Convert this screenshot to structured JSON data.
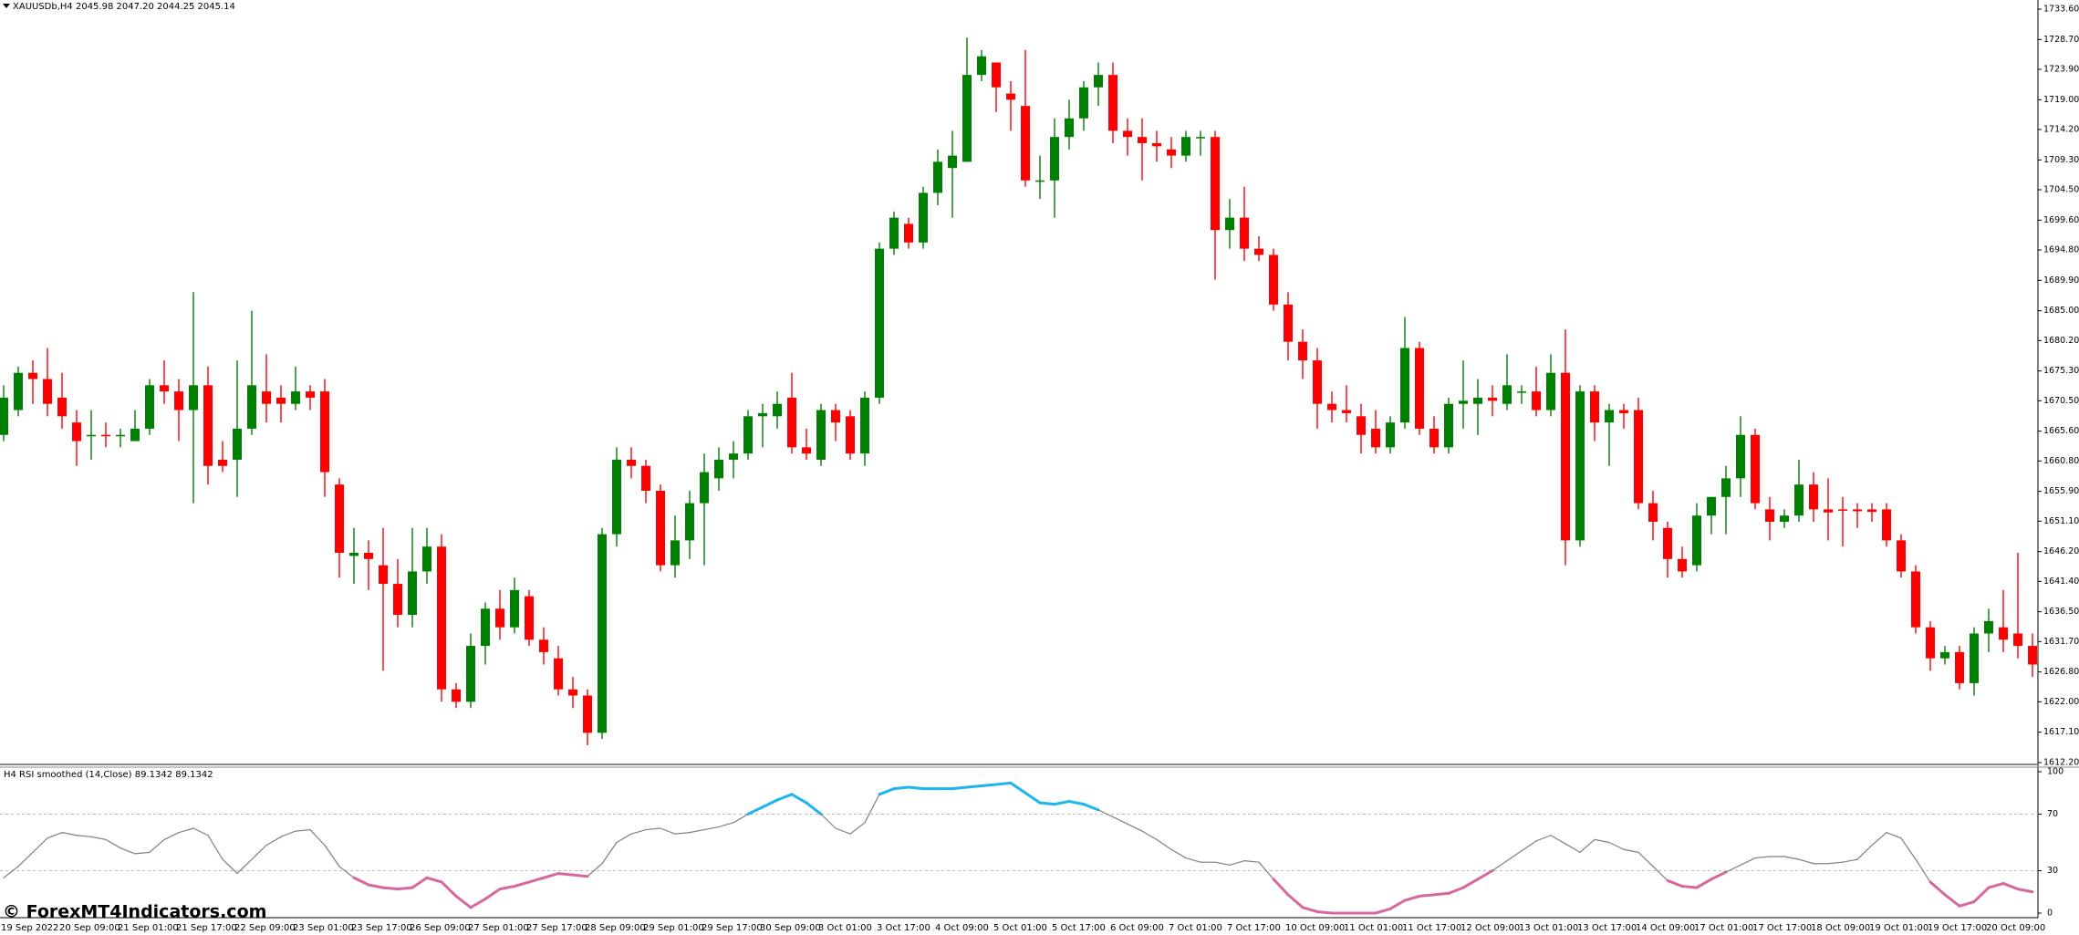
{
  "chart_data": [
    {
      "type": "candlestick",
      "title": "XAUUSDb,H4 2045.98 2047.20 2044.25 2045.14",
      "categories": [
        "19 Sep 2022",
        null,
        null,
        null,
        "20 Sep 09:00",
        null,
        null,
        null,
        "21 Sep 01:00",
        null,
        null,
        null,
        "21 Sep 17:00",
        null,
        null,
        null,
        "22 Sep 09:00",
        null,
        null,
        null,
        "23 Sep 01:00",
        null,
        null,
        null,
        "23 Sep 17:00",
        null,
        null,
        null,
        "26 Sep 09:00",
        null,
        null,
        null,
        "27 Sep 01:00",
        null,
        null,
        null,
        "27 Sep 17:00",
        null,
        null,
        null,
        "28 Sep 09:00",
        null,
        null,
        null,
        "29 Sep 01:00",
        null,
        null,
        null,
        "29 Sep 17:00",
        null,
        null,
        null,
        "30 Sep 09:00",
        null,
        null,
        null,
        "3 Oct 01:00",
        null,
        null,
        null,
        "3 Oct 17:00",
        null,
        null,
        null,
        "4 Oct 09:00",
        null,
        null,
        null,
        "5 Oct 01:00",
        null,
        null,
        null,
        "5 Oct 17:00",
        null,
        null,
        null,
        "6 Oct 09:00",
        null,
        null,
        null,
        "7 Oct 01:00",
        null,
        null,
        null,
        "7 Oct 17:00",
        null,
        null,
        null,
        "10 Oct 09:00",
        null,
        null,
        null,
        "11 Oct 01:00",
        null,
        null,
        null,
        "11 Oct 17:00",
        null,
        null,
        null,
        "12 Oct 09:00",
        null,
        null,
        null,
        "13 Oct 01:00",
        null,
        null,
        null,
        "13 Oct 17:00",
        null,
        null,
        null,
        "14 Oct 09:00",
        null,
        null,
        null,
        "17 Oct 01:00",
        null,
        null,
        null,
        "17 Oct 17:00",
        null,
        null,
        null,
        "18 Oct 09:00",
        null,
        null,
        null,
        "19 Oct 01:00",
        null,
        null,
        null,
        "19 Oct 17:00",
        null,
        null,
        null,
        "20 Oct 09:00",
        null,
        null,
        null
      ],
      "open": [
        1665,
        1669,
        1675,
        1674,
        1671,
        1667,
        1665,
        1665,
        1664.9,
        1664,
        1666,
        1673,
        1672,
        1669,
        1673,
        1661,
        1661,
        1666,
        1672,
        1671,
        1670,
        1672,
        1672,
        1657,
        1645.5,
        1646,
        1644,
        1641,
        1636,
        1643,
        1647,
        1624,
        1622,
        1631,
        1637,
        1634,
        1639,
        1632,
        1629,
        1624,
        1623,
        1617,
        1649,
        1661,
        1660,
        1656,
        1644,
        1648,
        1654,
        1658,
        1661,
        1662,
        1668,
        1668,
        1671,
        1663,
        1661,
        1669,
        1668,
        1662,
        1671,
        1695,
        1699,
        1696,
        1704,
        1708,
        1709,
        1723,
        1725,
        1720,
        1718,
        1706,
        1706,
        1713,
        1716,
        1721,
        1723,
        1714,
        1713,
        1712,
        1711,
        1710,
        1713,
        1713,
        1698,
        1700,
        1695,
        1694,
        1686,
        1680,
        1677,
        1670,
        1669,
        1668,
        1666,
        1663,
        1667,
        1679,
        1666,
        1663,
        1670,
        1670,
        1671,
        1670,
        1672,
        1672,
        1669,
        1675,
        1648,
        1672,
        1667,
        1669,
        1669,
        1654,
        1650,
        1645,
        1644,
        1652,
        1655,
        1658,
        1665,
        1653,
        1651,
        1652,
        1657,
        1653,
        1653,
        1653,
        1653,
        1653,
        1648,
        1643,
        1634,
        1629,
        1630,
        1625,
        1633,
        1634,
        1633,
        1631
      ],
      "high": [
        1673,
        1676,
        1677,
        1679,
        1675,
        1669,
        1669,
        1667,
        1666,
        1669,
        1674,
        1677,
        1674,
        1688,
        1676,
        1664,
        1677,
        1685,
        1678,
        1673,
        1676,
        1673,
        1674,
        1658,
        1650,
        1648,
        1650,
        1645,
        1650,
        1650,
        1649,
        1625,
        1633,
        1638,
        1640,
        1642,
        1640,
        1634,
        1631,
        1626,
        1624,
        1650,
        1663,
        1663,
        1661,
        1657,
        1652,
        1656,
        1662,
        1663,
        1664,
        1669,
        1670,
        1672,
        1675,
        1666,
        1670,
        1670,
        1669,
        1672,
        1696,
        1701,
        1700,
        1705,
        1711,
        1714,
        1729,
        1727,
        1725,
        1722,
        1727,
        1710,
        1716,
        1719,
        1722,
        1725,
        1725,
        1716,
        1716,
        1714,
        1713,
        1714,
        1714,
        1714,
        1703,
        1705,
        1697,
        1695,
        1688,
        1682,
        1679,
        1672,
        1673,
        1670,
        1669,
        1668,
        1684,
        1680,
        1668,
        1671,
        1677,
        1674,
        1673,
        1678,
        1673,
        1676,
        1678,
        1682,
        1673,
        1673,
        1670,
        1670,
        1671,
        1656,
        1651,
        1647,
        1654,
        1655,
        1660,
        1668,
        1666,
        1655,
        1653,
        1661,
        1659,
        1658,
        1655,
        1654,
        1654,
        1654,
        1649,
        1644,
        1635,
        1631,
        1631,
        1634,
        1637,
        1640,
        1646,
        1633
      ],
      "low": [
        1664,
        1668,
        1670,
        1668,
        1666,
        1660,
        1661,
        1663,
        1663,
        1664,
        1665,
        1670,
        1664,
        1654,
        1657,
        1659,
        1655,
        1665,
        1667,
        1667,
        1669,
        1669,
        1655,
        1642,
        1641,
        1640,
        1627,
        1634,
        1634,
        1641,
        1622,
        1621,
        1621,
        1628,
        1632,
        1633,
        1631,
        1628,
        1623,
        1621,
        1615,
        1616,
        1647,
        1658,
        1654,
        1643,
        1642,
        1645,
        1644,
        1656,
        1658,
        1661,
        1663,
        1666,
        1662,
        1661,
        1660,
        1664,
        1661,
        1660,
        1670,
        1694,
        1695,
        1695,
        1702,
        1700,
        1709,
        1722,
        1717,
        1714,
        1705,
        1703,
        1700,
        1711,
        1714,
        1718,
        1712,
        1710,
        1706,
        1709,
        1708,
        1709,
        1710,
        1690,
        1695,
        1693,
        1693,
        1685,
        1677,
        1674,
        1666,
        1667,
        1667,
        1662,
        1662,
        1662,
        1666,
        1665,
        1662,
        1662,
        1666,
        1665,
        1668,
        1669,
        1670,
        1668,
        1668,
        1644,
        1647,
        1664,
        1660,
        1666,
        1653,
        1648,
        1642,
        1642,
        1643,
        1649,
        1649,
        1655,
        1653,
        1648,
        1650,
        1651,
        1651,
        1648,
        1647,
        1650,
        1651,
        1647,
        1642,
        1633,
        1627,
        1628,
        1624,
        1623,
        1630,
        1630,
        1629,
        1626
      ],
      "close": [
        1671,
        1675,
        1674,
        1670,
        1668,
        1664,
        1665,
        1664.8,
        1665,
        1666,
        1673,
        1672,
        1669,
        1673,
        1660,
        1660,
        1666,
        1673,
        1670,
        1670,
        1672,
        1671,
        1659,
        1646,
        1646,
        1645,
        1641,
        1636,
        1643,
        1647,
        1624,
        1622,
        1631,
        1637,
        1634,
        1640,
        1632,
        1630,
        1624,
        1623,
        1617,
        1649,
        1661,
        1660,
        1656,
        1644,
        1648,
        1654,
        1659,
        1661,
        1662,
        1668,
        1668.5,
        1670,
        1663,
        1662,
        1669,
        1667,
        1662,
        1671,
        1695,
        1700,
        1696,
        1704,
        1709,
        1710,
        1723,
        1726,
        1721,
        1719,
        1706,
        1706,
        1713,
        1716,
        1721,
        1723,
        1714,
        1713,
        1712,
        1711.5,
        1710,
        1713,
        1713,
        1698,
        1700,
        1695,
        1694,
        1686,
        1680,
        1677,
        1670,
        1669,
        1668.5,
        1665,
        1663,
        1667,
        1679,
        1666,
        1663,
        1670,
        1670.5,
        1671,
        1670.5,
        1673,
        1672,
        1669,
        1675,
        1648,
        1672,
        1667,
        1669,
        1668.5,
        1654,
        1651,
        1645,
        1643,
        1652,
        1655,
        1658,
        1665,
        1654,
        1651,
        1652,
        1657,
        1653,
        1652.5,
        1652.8,
        1652.7,
        1652.6,
        1648,
        1643,
        1634,
        1629,
        1630,
        1625,
        1633,
        1635,
        1632,
        1631,
        1628
      ],
      "up_color": "#008000",
      "down_color": "#ff0000",
      "ylim": [
        1612.2,
        1733.6
      ],
      "yticks": [
        {
          "value": 1612.2,
          "label": "1612.20"
        },
        {
          "value": 1617.1,
          "label": "1617.10"
        },
        {
          "value": 1622,
          "label": "1622.00"
        },
        {
          "value": 1626.8,
          "label": "1626.80"
        },
        {
          "value": 1631.7,
          "label": "1631.70"
        },
        {
          "value": 1636.5,
          "label": "1636.50"
        },
        {
          "value": 1641.4,
          "label": "1641.40"
        },
        {
          "value": 1646.2,
          "label": "1646.20"
        },
        {
          "value": 1651.1,
          "label": "1651.10"
        },
        {
          "value": 1655.9,
          "label": "1655.90"
        },
        {
          "value": 1660.8,
          "label": "1660.80"
        },
        {
          "value": 1665.6,
          "label": "1665.60"
        },
        {
          "value": 1670.5,
          "label": "1670.50"
        },
        {
          "value": 1675.3,
          "label": "1675.30"
        },
        {
          "value": 1680.2,
          "label": "1680.20"
        },
        {
          "value": 1685,
          "label": "1685.00"
        },
        {
          "value": 1689.9,
          "label": "1689.90"
        },
        {
          "value": 1694.8,
          "label": "1694.80"
        },
        {
          "value": 1699.6,
          "label": "1699.60"
        },
        {
          "value": 1704.5,
          "label": "1704.50"
        },
        {
          "value": 1709.3,
          "label": "1709.30"
        },
        {
          "value": 1714.2,
          "label": "1714.20"
        },
        {
          "value": 1719,
          "label": "1719.00"
        },
        {
          "value": 1723.9,
          "label": "1723.90"
        },
        {
          "value": 1728.7,
          "label": "1728.70"
        },
        {
          "value": 1733.6,
          "label": "1733.60"
        }
      ]
    },
    {
      "type": "line",
      "title": "H4 RSI smoothed (14,Close) 89.1342 89.1342",
      "annotation": "© ForexMT4Indicators.com",
      "values": [
        25,
        33,
        43,
        53,
        57,
        55,
        54,
        52,
        46,
        42,
        43,
        52,
        57,
        60,
        55,
        38,
        28,
        38,
        48,
        54,
        58,
        59,
        48,
        33,
        25,
        20,
        18,
        17,
        18,
        25,
        22,
        12,
        4,
        10,
        17,
        19,
        22,
        25,
        28,
        27,
        26,
        35,
        50,
        56,
        59,
        60,
        56,
        57,
        59,
        61,
        64,
        70,
        75,
        80,
        84,
        78,
        70,
        60,
        56,
        64,
        84,
        88,
        89,
        88,
        88,
        88,
        89,
        90,
        91,
        92,
        85,
        78,
        77,
        79,
        77,
        73,
        68,
        63,
        58,
        52,
        45,
        39,
        36,
        36,
        34,
        37,
        36,
        24,
        13,
        4,
        1,
        0,
        0,
        0,
        0,
        3,
        9,
        12,
        13,
        14,
        18,
        24,
        30,
        37,
        44,
        51,
        55,
        49,
        43,
        52,
        50,
        45,
        43,
        33,
        23,
        19,
        18,
        24,
        29,
        34,
        39,
        40,
        40,
        38,
        35,
        35,
        36,
        38,
        48,
        57,
        53,
        38,
        22,
        13,
        5,
        8,
        18,
        21,
        17,
        15
      ],
      "color": "#808080",
      "high_color": "#1eb4f0",
      "low_color": "#d8679e",
      "levels": [
        70,
        30
      ],
      "ylim": [
        0,
        100
      ],
      "yticks": [
        100,
        70,
        30,
        0
      ]
    }
  ]
}
